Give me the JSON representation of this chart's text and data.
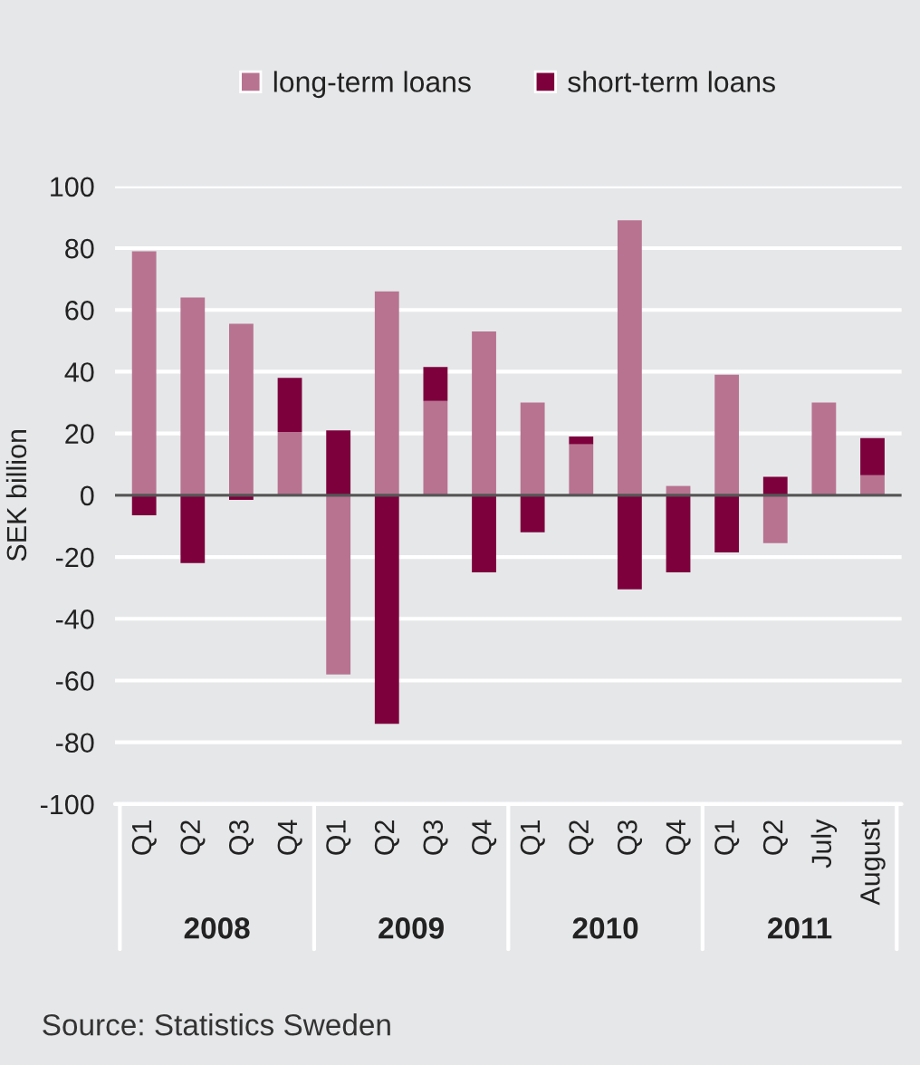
{
  "chart_data": {
    "type": "bar",
    "stacked": true,
    "ylabel": "SEK billion",
    "categories": [
      "Q1",
      "Q2",
      "Q3",
      "Q4",
      "Q1",
      "Q2",
      "Q3",
      "Q4",
      "Q1",
      "Q2",
      "Q3",
      "Q4",
      "Q1",
      "Q2",
      "July",
      "August"
    ],
    "series": [
      {
        "name": "long-term loans",
        "color": "#b87390",
        "values": [
          79,
          64,
          55.5,
          20.5,
          -58,
          66,
          30.5,
          53,
          30,
          16.5,
          89,
          3,
          39,
          -15.5,
          30,
          6.5
        ]
      },
      {
        "name": "short-term loans",
        "color": "#7d003c",
        "values": [
          -6.5,
          -22,
          -1.5,
          17.5,
          21,
          -74,
          11,
          -25,
          -12,
          2.5,
          -30.5,
          -25,
          -18.5,
          6,
          null,
          12
        ]
      }
    ],
    "ylim": [
      -100,
      100
    ],
    "yticks": [
      -100,
      -80,
      -60,
      -40,
      -20,
      0,
      20,
      40,
      60,
      80,
      100
    ],
    "grid": "y",
    "legend": "top",
    "annotations": [
      "2008",
      "2009",
      "2010",
      "2011",
      "Source: Statistics Sweden"
    ]
  }
}
